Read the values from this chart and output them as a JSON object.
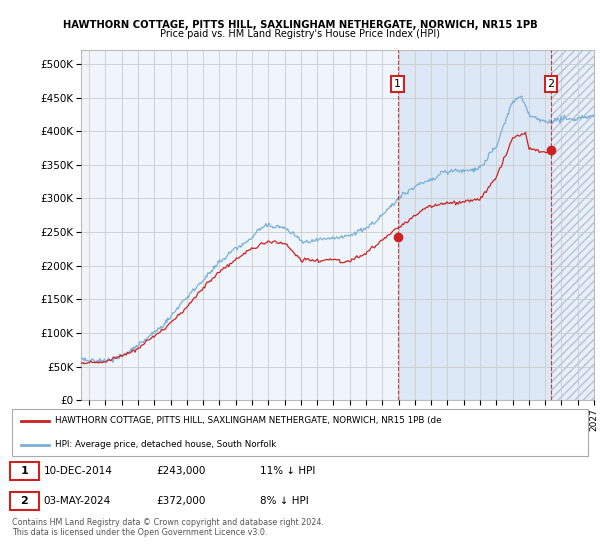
{
  "title1": "HAWTHORN COTTAGE, PITTS HILL, SAXLINGHAM NETHERGATE, NORWICH, NR15 1PB",
  "title2": "Price paid vs. HM Land Registry's House Price Index (HPI)",
  "ylabel_ticks": [
    "£0",
    "£50K",
    "£100K",
    "£150K",
    "£200K",
    "£250K",
    "£300K",
    "£350K",
    "£400K",
    "£450K",
    "£500K"
  ],
  "ytick_values": [
    0,
    50000,
    100000,
    150000,
    200000,
    250000,
    300000,
    350000,
    400000,
    450000,
    500000
  ],
  "ylim": [
    0,
    520000
  ],
  "xlim_start": 1995.5,
  "xlim_end": 2027.0,
  "hpi_color": "#7ab0d8",
  "price_color": "#cc2222",
  "point1_x": 2014.95,
  "point1_y": 243000,
  "point2_x": 2024.35,
  "point2_y": 372000,
  "legend_line1": "HAWTHORN COTTAGE, PITTS HILL, SAXLINGHAM NETHERGATE, NORWICH, NR15 1PB (de",
  "legend_line2": "HPI: Average price, detached house, South Norfolk",
  "point1_date": "10-DEC-2014",
  "point1_price": "£243,000",
  "point1_hpi": "11% ↓ HPI",
  "point2_date": "03-MAY-2024",
  "point2_price": "£372,000",
  "point2_hpi": "8% ↓ HPI",
  "footer": "Contains HM Land Registry data © Crown copyright and database right 2024.\nThis data is licensed under the Open Government Licence v3.0.",
  "bg_chart": "#f0f5fb",
  "bg_shade": "#dce8f5",
  "hatch_color": "#b0c8e0"
}
